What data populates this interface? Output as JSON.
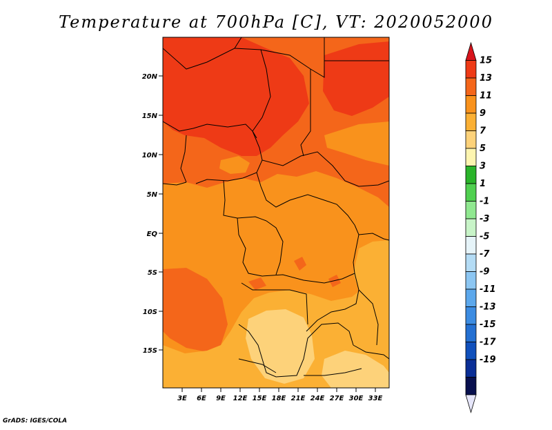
{
  "title": "Temperature at 700hPa [C], VT: 2020052000",
  "credit": "GrADS: IGES/COLA",
  "lat_ticks": [
    "20N",
    "15N",
    "10N",
    "5N",
    "EQ",
    "5S",
    "10S",
    "15S"
  ],
  "lon_ticks": [
    "3E",
    "6E",
    "9E",
    "12E",
    "15E",
    "18E",
    "21E",
    "24E",
    "27E",
    "30E",
    "33E"
  ],
  "colorbar": {
    "labels": [
      "15",
      "13",
      "11",
      "9",
      "7",
      "5",
      "3",
      "1",
      "-1",
      "-3",
      "-5",
      "-7",
      "-9",
      "-11",
      "-13",
      "-15",
      "-17",
      "-19"
    ],
    "colors": [
      "#d8141c",
      "#ee3a16",
      "#f4661a",
      "#f9921c",
      "#fbb034",
      "#fdd27a",
      "#fdf5b0",
      "#2ab42a",
      "#50d050",
      "#90e890",
      "#c8f4c8",
      "#e6f4f9",
      "#b4dcf5",
      "#8cc6f2",
      "#5ca8ec",
      "#3c8ce2",
      "#2470d2",
      "#1050bc",
      "#0a2e96",
      "#08104e",
      "#e6e6fa"
    ]
  }
}
